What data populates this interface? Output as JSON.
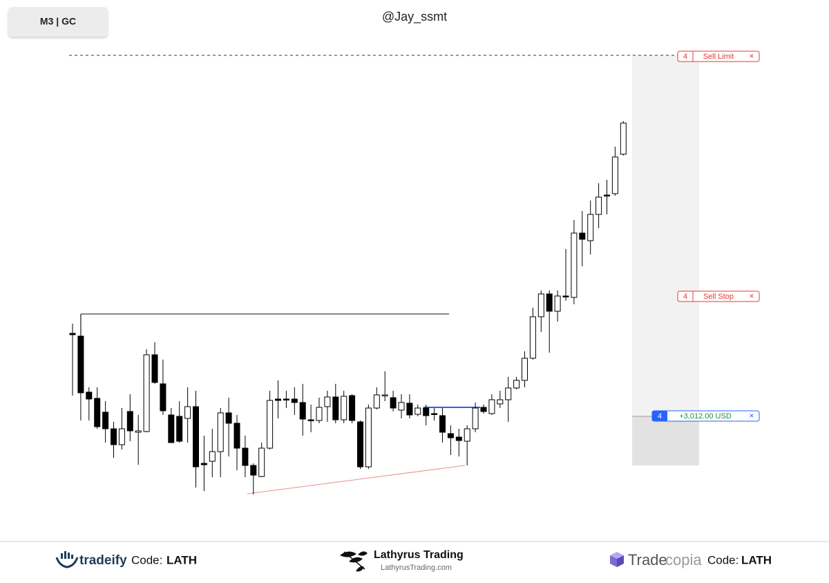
{
  "header": {
    "symbol_button": "M3 | GC",
    "watermark": "@Jay_ssmt"
  },
  "chart_data": {
    "type": "candlestick",
    "up_color": "#ffffff",
    "down_color": "#000000",
    "border_color": "#000000",
    "ylim": [
      0,
      160
    ],
    "ohlc": [
      [
        59.5,
        63,
        37,
        59
      ],
      [
        58.5,
        66.25,
        28,
        38
      ],
      [
        38.25,
        40,
        28,
        35.75
      ],
      [
        36,
        40,
        25,
        25.75
      ],
      [
        31,
        35,
        20,
        25
      ],
      [
        25,
        27.5,
        14.5,
        19.25
      ],
      [
        19.25,
        32.5,
        17.5,
        25
      ],
      [
        31.25,
        37.5,
        20.5,
        24.25
      ],
      [
        23.75,
        30,
        12,
        24.25
      ],
      [
        24,
        53.75,
        23.75,
        51.75
      ],
      [
        51.75,
        56.25,
        41.25,
        41.75
      ],
      [
        41.25,
        50,
        30,
        31.5
      ],
      [
        30,
        32.5,
        20,
        20
      ],
      [
        29.5,
        35,
        20,
        20.5
      ],
      [
        28.75,
        40,
        20,
        33
      ],
      [
        33,
        38.75,
        3.75,
        11.25
      ],
      [
        12.5,
        22.5,
        2.5,
        12
      ],
      [
        13.25,
        25,
        7.5,
        16.75
      ],
      [
        16.75,
        32.5,
        7.5,
        30.75
      ],
      [
        30.75,
        36.25,
        15,
        27
      ],
      [
        27,
        30,
        10,
        18
      ],
      [
        18,
        22.5,
        7.5,
        11.75
      ],
      [
        11.75,
        12.5,
        1.25,
        8.25
      ],
      [
        7.75,
        20,
        7.5,
        18
      ],
      [
        18,
        38.75,
        17.5,
        35.25
      ],
      [
        35.75,
        42.5,
        28.75,
        35.25
      ],
      [
        35.75,
        38.75,
        32.5,
        35.5
      ],
      [
        35.75,
        40,
        30,
        34.5
      ],
      [
        34.5,
        41.25,
        22.5,
        28.5
      ],
      [
        28.25,
        33.75,
        23.75,
        28
      ],
      [
        28,
        36.25,
        27,
        32.75
      ],
      [
        33,
        38.75,
        27.5,
        36.5
      ],
      [
        36.5,
        41.25,
        27,
        28.25
      ],
      [
        28.25,
        38.75,
        27,
        36.75
      ],
      [
        37,
        37.5,
        27,
        28
      ],
      [
        27.5,
        28,
        10.5,
        11.25
      ],
      [
        11.25,
        33.75,
        10.5,
        32.5
      ],
      [
        32.5,
        40,
        32,
        37.25
      ],
      [
        37,
        45.75,
        35,
        37.25
      ],
      [
        36.25,
        38.75,
        31.25,
        32.5
      ],
      [
        31.75,
        37.5,
        28.75,
        34.5
      ],
      [
        34.25,
        37.5,
        28.75,
        30
      ],
      [
        30.25,
        33.75,
        29.5,
        32.5
      ],
      [
        32.5,
        33.75,
        26.25,
        29.75
      ],
      [
        30.5,
        32.5,
        28,
        30.25
      ],
      [
        29.75,
        32.5,
        20,
        23.75
      ],
      [
        23.25,
        26.25,
        15.5,
        21.75
      ],
      [
        22,
        25,
        15,
        20.75
      ],
      [
        20.5,
        26.25,
        11.75,
        25
      ],
      [
        25,
        34.5,
        23.75,
        32.5
      ],
      [
        32.75,
        33.75,
        30.5,
        31.25
      ],
      [
        30.5,
        37.5,
        30,
        35.5
      ],
      [
        34,
        38.75,
        32.5,
        35.5
      ],
      [
        35.5,
        43.75,
        27.5,
        39.75
      ],
      [
        39.75,
        43.75,
        39.25,
        42.5
      ],
      [
        42.5,
        53,
        40,
        50.5
      ],
      [
        50.5,
        68.75,
        50,
        65.5
      ],
      [
        65.5,
        75,
        60,
        73.75
      ],
      [
        73.75,
        75,
        52.5,
        67.5
      ],
      [
        67.5,
        75,
        63.75,
        73
      ],
      [
        73,
        90,
        71.25,
        72.75
      ],
      [
        72.5,
        100.5,
        70,
        95.75
      ],
      [
        95.75,
        103.75,
        83.75,
        93.5
      ],
      [
        93,
        107.5,
        88,
        102.5
      ],
      [
        102.5,
        113.75,
        97.5,
        108.75
      ],
      [
        109.5,
        115,
        102.5,
        109.25
      ],
      [
        110,
        127,
        109.25,
        123.25
      ],
      [
        124.25,
        136.25,
        123.75,
        135.5
      ]
    ]
  },
  "orders": [
    {
      "qty": 4,
      "label": "Sell Limit",
      "close": "×"
    },
    {
      "qty": 4,
      "label": "Sell Stop",
      "close": "×"
    },
    {
      "qty": 4,
      "label": "+3,012.00 USD",
      "close": "×"
    }
  ],
  "footer": {
    "tradeify": {
      "brand": "tradeify",
      "code_label": "Code:",
      "code": "LATH"
    },
    "lathyrus": {
      "brand": "Lathyrus Trading",
      "site": "LathyrusTrading.com"
    },
    "tradecopia": {
      "brand_a": "Trade",
      "brand_b": "copia",
      "code_label": "Code:",
      "code": "LATH"
    }
  }
}
